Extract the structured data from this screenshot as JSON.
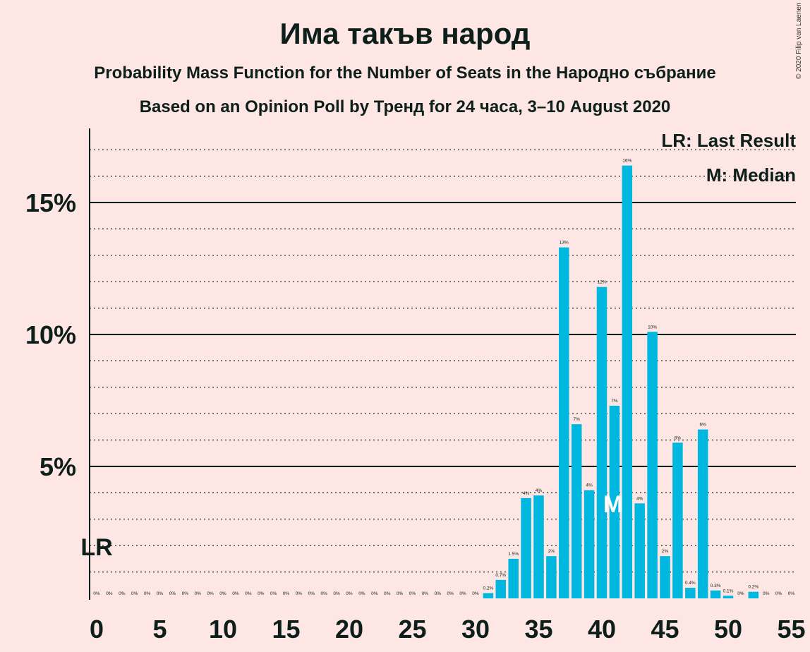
{
  "title": "Има такъв народ",
  "subtitle": "Probability Mass Function for the Number of Seats in the Народно събрание",
  "subtitle2": "Based on an Opinion Poll by Тренд for 24 часа, 3–10 August 2020",
  "copyright": "© 2020 Filip van Laenen",
  "legend": {
    "last_result": "LR: Last Result",
    "median": "M: Median"
  },
  "colors": {
    "bar": "#00b7df",
    "background": "#fde6e4",
    "text": "#0d1f1a"
  },
  "chart_data": {
    "type": "bar",
    "x": [
      0,
      1,
      2,
      3,
      4,
      5,
      6,
      7,
      8,
      9,
      10,
      11,
      12,
      13,
      14,
      15,
      16,
      17,
      18,
      19,
      20,
      21,
      22,
      23,
      24,
      25,
      26,
      27,
      28,
      29,
      30,
      31,
      32,
      33,
      34,
      35,
      36,
      37,
      38,
      39,
      40,
      41,
      42,
      43,
      44,
      45,
      46,
      47,
      48,
      49,
      50,
      51,
      52,
      53,
      54,
      55
    ],
    "values": [
      0,
      0,
      0,
      0,
      0,
      0,
      0,
      0,
      0,
      0,
      0,
      0,
      0,
      0,
      0,
      0,
      0,
      0,
      0,
      0,
      0,
      0,
      0,
      0,
      0,
      0,
      0,
      0,
      0,
      0,
      0,
      0.2,
      0.7,
      1.5,
      3.8,
      3.9,
      1.6,
      13.3,
      6.6,
      4.1,
      11.8,
      7.3,
      16.4,
      3.6,
      10.1,
      1.6,
      5.9,
      0.4,
      6.4,
      0.3,
      0.1,
      0,
      0.25,
      0,
      0,
      0
    ],
    "labels": [
      "0%",
      "0%",
      "0%",
      "0%",
      "0%",
      "0%",
      "0%",
      "0%",
      "0%",
      "0%",
      "0%",
      "0%",
      "0%",
      "0%",
      "0%",
      "0%",
      "0%",
      "0%",
      "0%",
      "0%",
      "0%",
      "0%",
      "0%",
      "0%",
      "0%",
      "0%",
      "0%",
      "0%",
      "0%",
      "0%",
      "0%",
      "0.2%",
      "0.7%",
      "1.5%",
      "4%",
      "4%",
      "2%",
      "13%",
      "7%",
      "4%",
      "12%",
      "7%",
      "16%",
      "4%",
      "10%",
      "2%",
      "6%",
      "0.4%",
      "6%",
      "0.3%",
      "0.1%",
      "0%",
      "0.2%",
      "0%",
      "0%",
      "0%"
    ],
    "xticks": [
      "0",
      "5",
      "10",
      "15",
      "20",
      "25",
      "30",
      "35",
      "40",
      "45",
      "50",
      "55"
    ],
    "yticks": [
      "5%",
      "10%",
      "15%"
    ],
    "ylim": [
      0,
      17.8
    ],
    "last_result_label": "LR",
    "last_result_seat": 0,
    "median_label": "M",
    "median_seat": 41
  }
}
